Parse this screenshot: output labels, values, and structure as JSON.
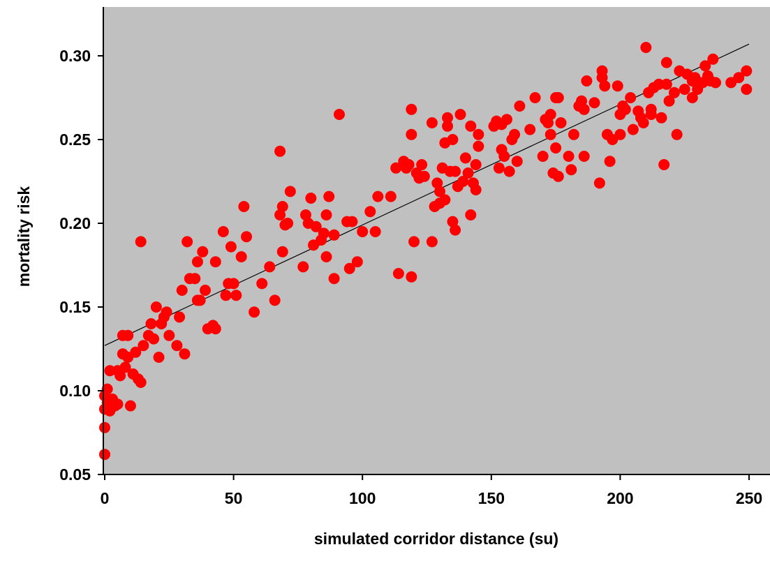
{
  "chart_data": {
    "type": "scatter",
    "title": "",
    "xlabel": "simulated corridor distance (su)",
    "ylabel": "mortality risk",
    "xlim": [
      0,
      250
    ],
    "ylim": [
      0.05,
      0.32
    ],
    "xticks": [
      "0",
      "50",
      "100",
      "150",
      "200",
      "250"
    ],
    "yticks": [
      "0.05",
      "0.10",
      "0.15",
      "0.20",
      "0.25",
      "0.30"
    ],
    "grid": false,
    "colors": {
      "plot_background": "#c0c0c0",
      "points": "#ff0000",
      "trendline": "#000000"
    },
    "trendline": {
      "x": [
        0,
        250
      ],
      "y": [
        0.127,
        0.307
      ]
    },
    "series": [
      {
        "points": [
          [
            0,
            0.062
          ],
          [
            0,
            0.078
          ],
          [
            0,
            0.089
          ],
          [
            0,
            0.097
          ],
          [
            1,
            0.101
          ],
          [
            1,
            0.093
          ],
          [
            2,
            0.088
          ],
          [
            2,
            0.112
          ],
          [
            3,
            0.095
          ],
          [
            4,
            0.091
          ],
          [
            5,
            0.112
          ],
          [
            5,
            0.092
          ],
          [
            6,
            0.109
          ],
          [
            7,
            0.133
          ],
          [
            7,
            0.122
          ],
          [
            8,
            0.114
          ],
          [
            9,
            0.12
          ],
          [
            9,
            0.133
          ],
          [
            10,
            0.091
          ],
          [
            11,
            0.11
          ],
          [
            12,
            0.123
          ],
          [
            13,
            0.107
          ],
          [
            14,
            0.105
          ],
          [
            14,
            0.189
          ],
          [
            15,
            0.127
          ],
          [
            17,
            0.133
          ],
          [
            18,
            0.14
          ],
          [
            19,
            0.131
          ],
          [
            20,
            0.15
          ],
          [
            21,
            0.12
          ],
          [
            22,
            0.14
          ],
          [
            23,
            0.144
          ],
          [
            24,
            0.147
          ],
          [
            25,
            0.133
          ],
          [
            28,
            0.127
          ],
          [
            29,
            0.144
          ],
          [
            30,
            0.16
          ],
          [
            31,
            0.122
          ],
          [
            32,
            0.189
          ],
          [
            33,
            0.167
          ],
          [
            35,
            0.167
          ],
          [
            36,
            0.177
          ],
          [
            36,
            0.154
          ],
          [
            37,
            0.154
          ],
          [
            38,
            0.183
          ],
          [
            39,
            0.16
          ],
          [
            40,
            0.137
          ],
          [
            42,
            0.139
          ],
          [
            43,
            0.137
          ],
          [
            43,
            0.177
          ],
          [
            46,
            0.195
          ],
          [
            47,
            0.157
          ],
          [
            48,
            0.164
          ],
          [
            49,
            0.186
          ],
          [
            50,
            0.164
          ],
          [
            51,
            0.157
          ],
          [
            53,
            0.18
          ],
          [
            54,
            0.21
          ],
          [
            55,
            0.192
          ],
          [
            58,
            0.147
          ],
          [
            61,
            0.164
          ],
          [
            64,
            0.174
          ],
          [
            66,
            0.154
          ],
          [
            68,
            0.243
          ],
          [
            68,
            0.205
          ],
          [
            69,
            0.21
          ],
          [
            69,
            0.183
          ],
          [
            70,
            0.199
          ],
          [
            71,
            0.2
          ],
          [
            72,
            0.219
          ],
          [
            77,
            0.174
          ],
          [
            78,
            0.205
          ],
          [
            79,
            0.2
          ],
          [
            80,
            0.215
          ],
          [
            81,
            0.187
          ],
          [
            82,
            0.198
          ],
          [
            84,
            0.19
          ],
          [
            85,
            0.194
          ],
          [
            86,
            0.205
          ],
          [
            86,
            0.18
          ],
          [
            87,
            0.216
          ],
          [
            89,
            0.167
          ],
          [
            89,
            0.193
          ],
          [
            91,
            0.265
          ],
          [
            94,
            0.201
          ],
          [
            95,
            0.173
          ],
          [
            96,
            0.201
          ],
          [
            98,
            0.177
          ],
          [
            100,
            0.195
          ],
          [
            103,
            0.207
          ],
          [
            105,
            0.195
          ],
          [
            106,
            0.216
          ],
          [
            111,
            0.216
          ],
          [
            113,
            0.233
          ],
          [
            114,
            0.17
          ],
          [
            116,
            0.237
          ],
          [
            117,
            0.233
          ],
          [
            118,
            0.235
          ],
          [
            119,
            0.168
          ],
          [
            119,
            0.253
          ],
          [
            119,
            0.268
          ],
          [
            120,
            0.189
          ],
          [
            121,
            0.23
          ],
          [
            122,
            0.227
          ],
          [
            123,
            0.235
          ],
          [
            124,
            0.228
          ],
          [
            127,
            0.189
          ],
          [
            127,
            0.26
          ],
          [
            128,
            0.21
          ],
          [
            129,
            0.224
          ],
          [
            130,
            0.212
          ],
          [
            130,
            0.219
          ],
          [
            131,
            0.233
          ],
          [
            132,
            0.248
          ],
          [
            132,
            0.214
          ],
          [
            133,
            0.263
          ],
          [
            133,
            0.258
          ],
          [
            134,
            0.231
          ],
          [
            135,
            0.25
          ],
          [
            135,
            0.201
          ],
          [
            136,
            0.196
          ],
          [
            136,
            0.231
          ],
          [
            137,
            0.222
          ],
          [
            138,
            0.265
          ],
          [
            139,
            0.225
          ],
          [
            140,
            0.239
          ],
          [
            141,
            0.23
          ],
          [
            142,
            0.205
          ],
          [
            142,
            0.258
          ],
          [
            143,
            0.224
          ],
          [
            144,
            0.235
          ],
          [
            144,
            0.22
          ],
          [
            145,
            0.253
          ],
          [
            145,
            0.246
          ],
          [
            151,
            0.258
          ],
          [
            152,
            0.261
          ],
          [
            153,
            0.233
          ],
          [
            154,
            0.244
          ],
          [
            154,
            0.259
          ],
          [
            155,
            0.24
          ],
          [
            156,
            0.262
          ],
          [
            157,
            0.231
          ],
          [
            158,
            0.25
          ],
          [
            159,
            0.253
          ],
          [
            160,
            0.237
          ],
          [
            161,
            0.27
          ],
          [
            165,
            0.256
          ],
          [
            167,
            0.275
          ],
          [
            170,
            0.24
          ],
          [
            171,
            0.262
          ],
          [
            172,
            0.26
          ],
          [
            173,
            0.265
          ],
          [
            173,
            0.253
          ],
          [
            174,
            0.23
          ],
          [
            175,
            0.275
          ],
          [
            175,
            0.245
          ],
          [
            176,
            0.275
          ],
          [
            176,
            0.228
          ],
          [
            177,
            0.26
          ],
          [
            180,
            0.24
          ],
          [
            181,
            0.232
          ],
          [
            182,
            0.253
          ],
          [
            184,
            0.27
          ],
          [
            185,
            0.273
          ],
          [
            186,
            0.268
          ],
          [
            186,
            0.24
          ],
          [
            187,
            0.285
          ],
          [
            190,
            0.272
          ],
          [
            192,
            0.224
          ],
          [
            193,
            0.291
          ],
          [
            193,
            0.287
          ],
          [
            194,
            0.282
          ],
          [
            195,
            0.253
          ],
          [
            196,
            0.237
          ],
          [
            197,
            0.25
          ],
          [
            199,
            0.282
          ],
          [
            200,
            0.253
          ],
          [
            200,
            0.265
          ],
          [
            201,
            0.27
          ],
          [
            202,
            0.268
          ],
          [
            204,
            0.275
          ],
          [
            205,
            0.256
          ],
          [
            207,
            0.267
          ],
          [
            208,
            0.263
          ],
          [
            209,
            0.26
          ],
          [
            210,
            0.305
          ],
          [
            211,
            0.278
          ],
          [
            212,
            0.268
          ],
          [
            212,
            0.265
          ],
          [
            213,
            0.281
          ],
          [
            215,
            0.283
          ],
          [
            216,
            0.263
          ],
          [
            217,
            0.235
          ],
          [
            218,
            0.296
          ],
          [
            218,
            0.283
          ],
          [
            219,
            0.273
          ],
          [
            221,
            0.278
          ],
          [
            222,
            0.253
          ],
          [
            223,
            0.291
          ],
          [
            225,
            0.28
          ],
          [
            226,
            0.289
          ],
          [
            228,
            0.285
          ],
          [
            228,
            0.275
          ],
          [
            229,
            0.287
          ],
          [
            230,
            0.28
          ],
          [
            232,
            0.284
          ],
          [
            233,
            0.294
          ],
          [
            234,
            0.288
          ],
          [
            235,
            0.285
          ],
          [
            236,
            0.298
          ],
          [
            237,
            0.284
          ],
          [
            243,
            0.284
          ],
          [
            246,
            0.287
          ],
          [
            249,
            0.28
          ],
          [
            249,
            0.291
          ]
        ]
      }
    ]
  }
}
